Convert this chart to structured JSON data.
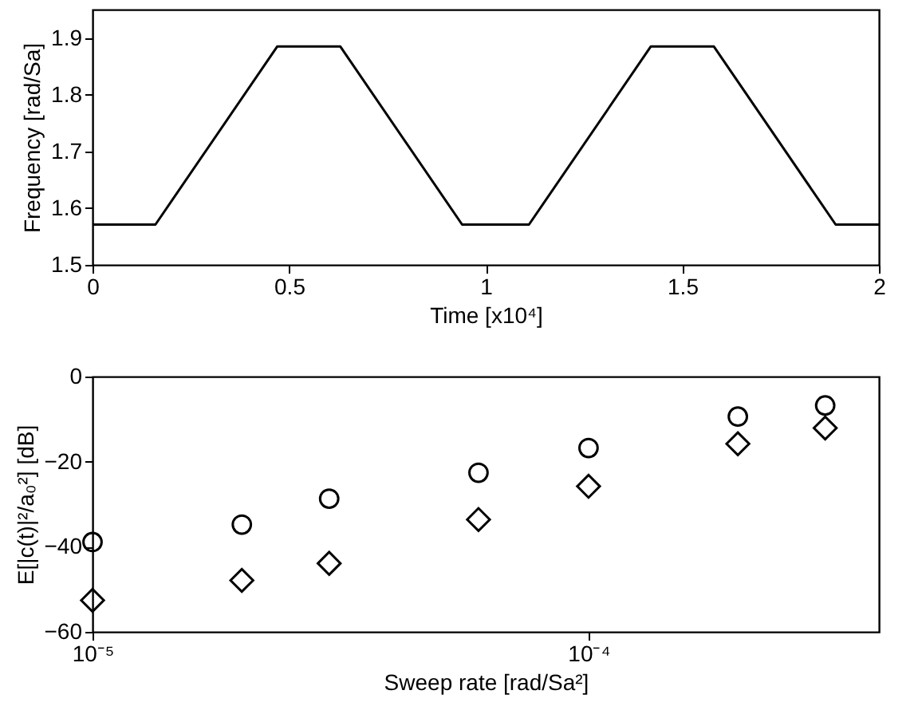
{
  "chart_data": [
    {
      "type": "line",
      "xlabel": "Time [x10⁴]",
      "ylabel": "Frequency [rad/Sa]",
      "x": [
        0,
        0.16,
        0.47,
        0.63,
        0.94,
        1.11,
        1.42,
        1.58,
        1.89,
        2
      ],
      "series": [
        {
          "color": "#000000",
          "values": [
            1.571,
            1.571,
            1.885,
            1.885,
            1.571,
            1.571,
            1.885,
            1.885,
            1.571,
            1.571
          ]
        }
      ],
      "xlim": [
        0,
        2
      ],
      "xticks": [
        0,
        0.5,
        1,
        1.5,
        2
      ],
      "ylim": [
        1.5,
        1.95
      ],
      "yticks": [
        1.5,
        1.6,
        1.7,
        1.8,
        1.9
      ],
      "grid": false,
      "marker": "none",
      "line_style": "solid"
    },
    {
      "type": "scatter",
      "xlabel": "Sweep rate [rad/Sa²]",
      "ylabel": "E[|c(t)|²/a₀²] [dB]",
      "x": [
        1e-05,
        2e-05,
        3e-05,
        6e-05,
        0.0001,
        0.0002,
        0.0003
      ],
      "series": [
        {
          "color": "#000000",
          "marker": "circle",
          "values": [
            -38.9,
            -34.8,
            -28.7,
            -22.6,
            -16.8,
            -9.4,
            -6.8
          ]
        },
        {
          "color": "#000000",
          "marker": "diamond",
          "values": [
            -52.6,
            -47.9,
            -43.9,
            -33.6,
            -25.8,
            -15.8,
            -12.1
          ]
        }
      ],
      "log": "x",
      "xlim": [
        1e-05,
        0.000385
      ],
      "xticks": [
        {
          "value": 1e-05,
          "label": "10⁻⁵"
        },
        {
          "value": 0.0001,
          "label": "10⁻⁴"
        }
      ],
      "ylim": [
        -60,
        0
      ],
      "yticks": [
        -60,
        -40,
        -20,
        0
      ],
      "grid": false
    }
  ]
}
